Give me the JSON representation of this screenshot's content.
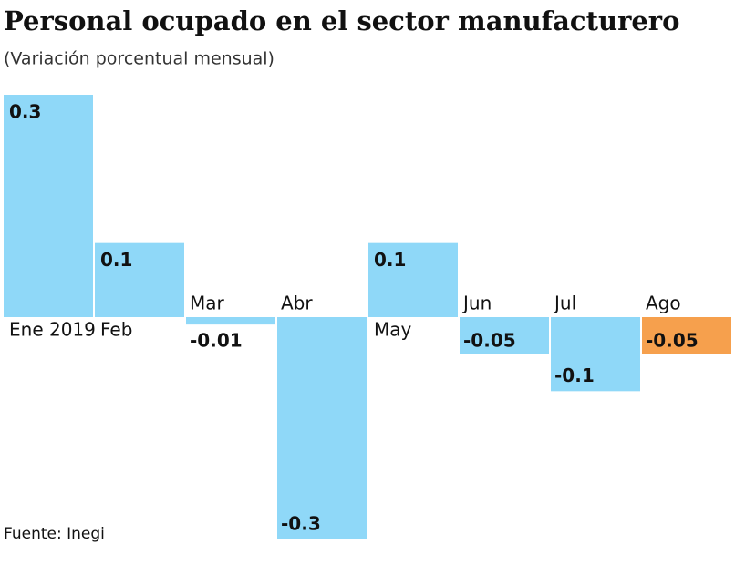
{
  "chart_data": {
    "type": "bar",
    "title": "Personal ocupado en el sector manufacturero",
    "subtitle": "(Variación porcentual mensual)",
    "categories": [
      "Ene 2019",
      "Feb",
      "Mar",
      "Abr",
      "May",
      "Jun",
      "Jul",
      "Ago"
    ],
    "values": [
      0.3,
      0.1,
      -0.01,
      -0.3,
      0.1,
      -0.05,
      -0.1,
      -0.05
    ],
    "colors": [
      "#8fd8f8",
      "#8fd8f8",
      "#8fd8f8",
      "#8fd8f8",
      "#8fd8f8",
      "#8fd8f8",
      "#8fd8f8",
      "#f6a04d"
    ],
    "ylim": [
      -0.3,
      0.3
    ],
    "source": "Fuente: Inegi"
  }
}
